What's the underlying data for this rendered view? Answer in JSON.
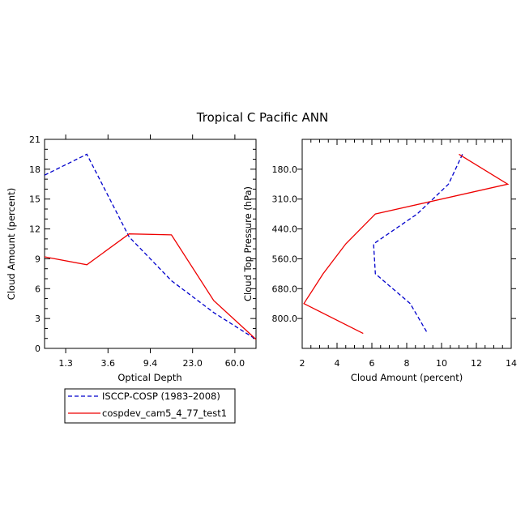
{
  "colors": {
    "obs": "#0000cc",
    "model": "#ee0000"
  },
  "chart_data": [
    {
      "type": "line",
      "title": "Tropical C Pacific ANN",
      "xlabel": "Optical Depth",
      "ylabel": "Cloud Amount (percent)",
      "ylim": [
        0,
        21
      ],
      "yticks": [
        "0",
        "3",
        "6",
        "9",
        "12",
        "15",
        "18",
        "21"
      ],
      "xtick_labels": [
        "1.3",
        "3.6",
        "9.4",
        "23.0",
        "60.0"
      ],
      "x_index": [
        0,
        1,
        2,
        3,
        4,
        5
      ],
      "series": [
        {
          "name": "ISCCP-COSP (1983-2008)",
          "style": "dashed",
          "values": [
            17.4,
            19.5,
            11.2,
            6.8,
            3.6,
            0.9
          ]
        },
        {
          "name": "cospdev_cam5_4_77_test1",
          "style": "solid",
          "values": [
            9.2,
            8.4,
            11.5,
            11.4,
            4.8,
            0.9
          ]
        }
      ]
    },
    {
      "type": "line",
      "xlabel": "Cloud Amount (percent)",
      "ylabel": "Cloud Top Pressure (hPa)",
      "xlim": [
        2,
        14
      ],
      "xticks": [
        "2",
        "4",
        "6",
        "8",
        "10",
        "12",
        "14"
      ],
      "ytick_labels": [
        "180.0",
        "310.0",
        "440.0",
        "560.0",
        "680.0",
        "800.0"
      ],
      "pressure_levels": [
        90,
        245,
        375,
        500,
        620,
        740,
        900
      ],
      "series": [
        {
          "name": "ISCCP-COSP (1983-2008)",
          "style": "dashed",
          "values": [
            11.2,
            10.4,
            8.6,
            6.1,
            6.2,
            8.2,
            9.2
          ]
        },
        {
          "name": "cospdev_cam5_4_77_test1",
          "style": "solid",
          "values": [
            11.0,
            13.8,
            6.2,
            4.5,
            3.2,
            2.1,
            5.5
          ]
        }
      ]
    }
  ],
  "legend": [
    {
      "label": "ISCCP-COSP (1983–2008)",
      "style": "dashed"
    },
    {
      "label": "cospdev_cam5_4_77_test1",
      "style": "solid"
    }
  ]
}
